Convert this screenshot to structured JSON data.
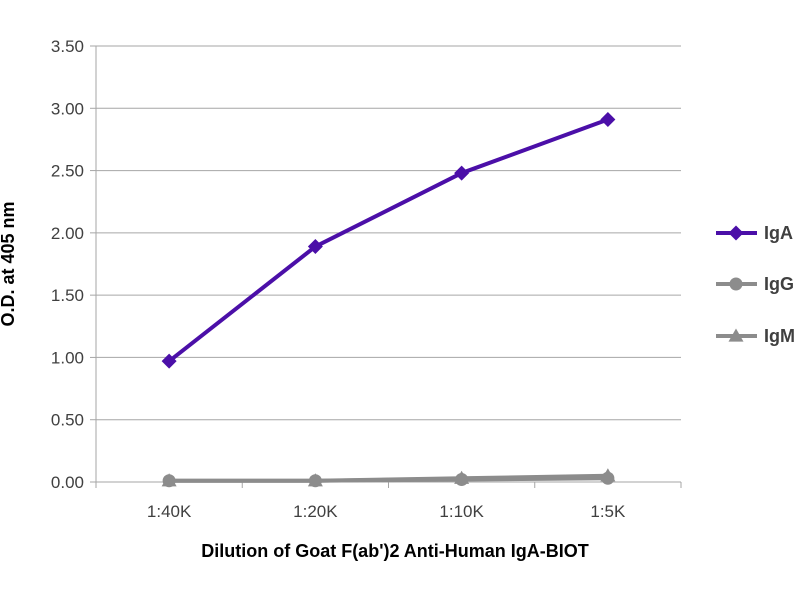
{
  "chart_data": {
    "type": "line",
    "title": "",
    "xlabel": "Dilution of Goat F(ab')2 Anti-Human IgA-BIOT",
    "ylabel": "O.D. at 405 nm",
    "categories": [
      "1:40K",
      "1:20K",
      "1:10K",
      "1:5K"
    ],
    "ylim": [
      0,
      3.5
    ],
    "yticks": [
      "0.00",
      "0.50",
      "1.00",
      "1.50",
      "2.00",
      "2.50",
      "3.00",
      "3.50"
    ],
    "grid": true,
    "legend_position": "right",
    "series": [
      {
        "name": "IgA",
        "values": [
          0.97,
          1.89,
          2.48,
          2.91
        ],
        "color": "#4B0FA8",
        "marker": "diamond"
      },
      {
        "name": "IgG",
        "values": [
          0.01,
          0.01,
          0.02,
          0.03
        ],
        "color": "#8C8C8C",
        "marker": "circle"
      },
      {
        "name": "IgM",
        "values": [
          0.01,
          0.01,
          0.03,
          0.05
        ],
        "color": "#8C8C8C",
        "marker": "triangle"
      }
    ]
  }
}
